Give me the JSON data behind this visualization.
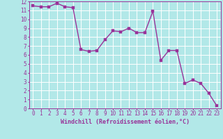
{
  "x": [
    0,
    1,
    2,
    3,
    4,
    5,
    6,
    7,
    8,
    9,
    10,
    11,
    12,
    13,
    14,
    15,
    16,
    17,
    18,
    19,
    20,
    21,
    22,
    23
  ],
  "y": [
    11.5,
    11.4,
    11.4,
    11.8,
    11.4,
    11.3,
    6.6,
    6.4,
    6.5,
    7.7,
    8.7,
    8.6,
    9.0,
    8.5,
    8.5,
    10.9,
    5.4,
    6.5,
    6.5,
    2.8,
    3.2,
    2.8,
    1.7,
    0.3
  ],
  "line_color": "#993399",
  "marker_color": "#993399",
  "bg_color": "#b2e8e8",
  "grid_color": "#ffffff",
  "xlabel": "Windchill (Refroidissement éolien,°C)",
  "xlim": [
    -0.5,
    23.5
  ],
  "ylim": [
    0,
    12
  ],
  "xticks": [
    0,
    1,
    2,
    3,
    4,
    5,
    6,
    7,
    8,
    9,
    10,
    11,
    12,
    13,
    14,
    15,
    16,
    17,
    18,
    19,
    20,
    21,
    22,
    23
  ],
  "yticks": [
    0,
    1,
    2,
    3,
    4,
    5,
    6,
    7,
    8,
    9,
    10,
    11,
    12
  ],
  "tick_fontsize": 5.5,
  "xlabel_fontsize": 6.0,
  "marker_size": 2.5,
  "line_width": 1.0
}
